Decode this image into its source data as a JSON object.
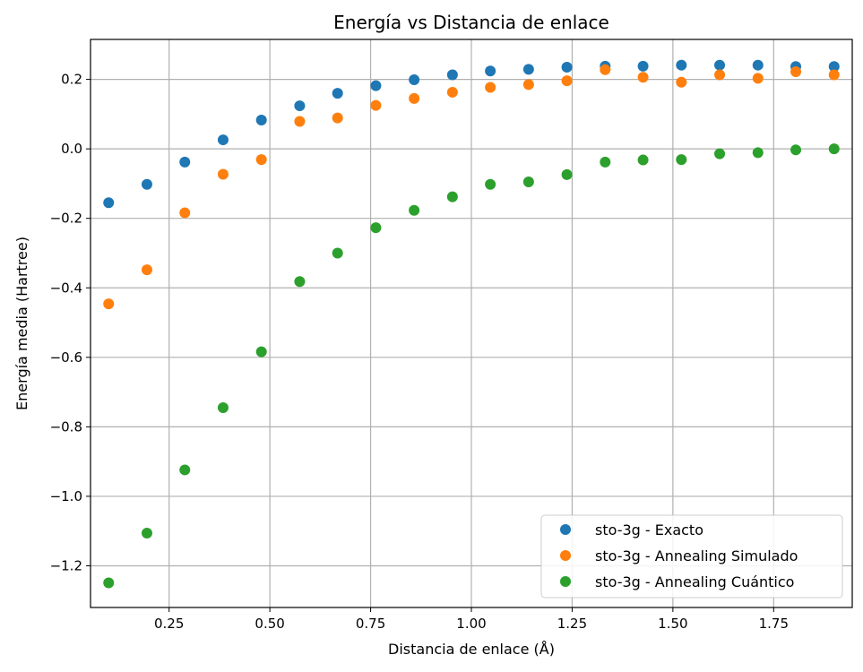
{
  "chart_data": {
    "type": "scatter",
    "title": "Energía vs Distancia de enlace",
    "xlabel": "Distancia de enlace (Å)",
    "ylabel": "Energía media (Hartree)",
    "xlim": [
      0.055,
      1.945
    ],
    "ylim": [
      -1.32,
      0.315
    ],
    "xticks": [
      0.25,
      0.5,
      0.75,
      1.0,
      1.25,
      1.5,
      1.75
    ],
    "xtick_labels": [
      "0.25",
      "0.50",
      "0.75",
      "1.00",
      "1.25",
      "1.50",
      "1.75"
    ],
    "yticks": [
      -1.2,
      -1.0,
      -0.8,
      -0.6,
      -0.4,
      -0.2,
      0.0,
      0.2
    ],
    "ytick_labels": [
      "−1.2",
      "−1.0",
      "−0.8",
      "−0.6",
      "−0.4",
      "−0.2",
      "0.0",
      "0.2"
    ],
    "grid": true,
    "legend_position": "lower-right",
    "x": [
      0.1,
      0.195,
      0.289,
      0.384,
      0.479,
      0.574,
      0.668,
      0.763,
      0.858,
      0.953,
      1.047,
      1.142,
      1.237,
      1.332,
      1.426,
      1.521,
      1.616,
      1.711,
      1.805,
      1.9
    ],
    "series": [
      {
        "name": "sto-3g - Exacto",
        "color": "#1f77b4",
        "values": [
          -0.155,
          -0.102,
          -0.038,
          0.026,
          0.083,
          0.124,
          0.16,
          0.182,
          0.199,
          0.213,
          0.224,
          0.229,
          0.235,
          0.238,
          0.238,
          0.241,
          0.241,
          0.241,
          0.237,
          0.237
        ]
      },
      {
        "name": "sto-3g - Annealing Simulado",
        "color": "#ff7f0e",
        "values": [
          -0.446,
          -0.348,
          -0.184,
          -0.073,
          -0.031,
          0.079,
          0.089,
          0.125,
          0.145,
          0.163,
          0.177,
          0.185,
          0.196,
          0.228,
          0.206,
          0.192,
          0.213,
          0.203,
          0.222,
          0.213
        ]
      },
      {
        "name": "sto-3g - Annealing Cuántico",
        "color": "#2ca02c",
        "values": [
          -1.249,
          -1.106,
          -0.924,
          -0.745,
          -0.584,
          -0.382,
          -0.3,
          -0.227,
          -0.177,
          -0.138,
          -0.102,
          -0.095,
          -0.074,
          -0.038,
          -0.032,
          -0.031,
          -0.014,
          -0.011,
          -0.003,
          0.0
        ]
      }
    ]
  }
}
